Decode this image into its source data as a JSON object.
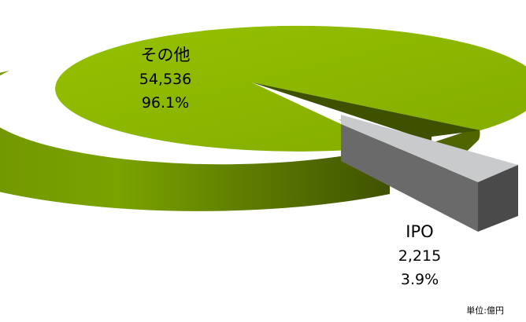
{
  "chart_data": {
    "type": "pie",
    "style": "3d-exploded",
    "slices": [
      {
        "label": "その他",
        "value": 54536,
        "value_label": "54,536",
        "percent_label": "96.1%",
        "color": "#8db600",
        "side_color": "#5a7a00"
      },
      {
        "label": "IPO",
        "value": 2215,
        "value_label": "2,215",
        "percent_label": "3.9%",
        "color": "#c8cacb",
        "side_color": "#5f5f5f"
      }
    ],
    "unit_note": "単位:億円",
    "legend": "none"
  }
}
